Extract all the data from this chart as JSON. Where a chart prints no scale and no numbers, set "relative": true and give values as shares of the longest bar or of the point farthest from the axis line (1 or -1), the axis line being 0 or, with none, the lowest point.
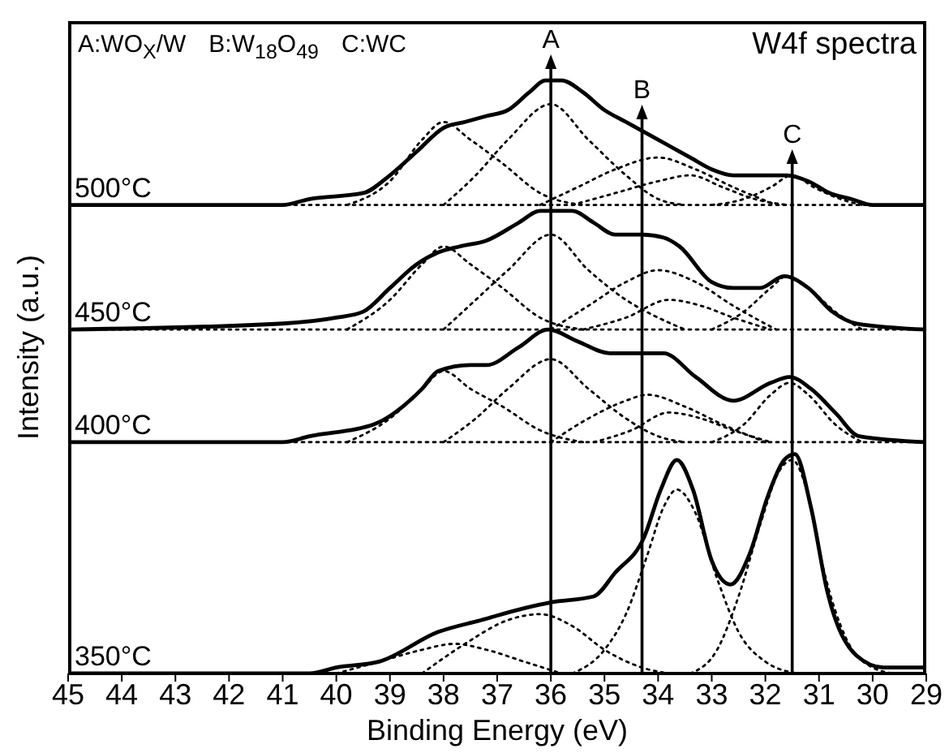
{
  "chart_data": {
    "type": "line",
    "relative": true,
    "xlabel": "Binding Energy (eV)",
    "ylabel": "Intensity (a.u.)",
    "xlim": [
      45,
      29
    ],
    "xticks": [
      45,
      44,
      43,
      42,
      41,
      40,
      39,
      38,
      37,
      36,
      35,
      34,
      33,
      32,
      31,
      30,
      29
    ],
    "annotations": [
      "A:WO$_{X}$/W",
      "B:W$_{18}$O$_{49}$",
      "C:WC",
      "W4f spectra"
    ],
    "ref_lines": [
      {
        "axis": "x",
        "value": 36,
        "label": "A",
        "color": "#000000"
      },
      {
        "axis": "x",
        "value": 34.3,
        "label": "B",
        "color": "#000000"
      },
      {
        "axis": "x",
        "value": 31.5,
        "label": "C",
        "color": "#000000"
      }
    ],
    "series": [
      {
        "name": "500°C",
        "color": "#000000",
        "line_style": "solid",
        "x": [
          45,
          41,
          40.5,
          39.5,
          39,
          38.5,
          38,
          37.6,
          37.2,
          36.8,
          36.4,
          36.1,
          35.8,
          35.4,
          35,
          34.6,
          34.2,
          33.8,
          33.4,
          33,
          32.6,
          32.1,
          31.6,
          31.2,
          30.8,
          30.4,
          30,
          29
        ],
        "values": [
          0.79,
          0.79,
          0.8,
          0.81,
          0.84,
          0.88,
          0.92,
          0.93,
          0.94,
          0.95,
          0.98,
          1.0,
          1.0,
          0.98,
          0.95,
          0.93,
          0.91,
          0.89,
          0.87,
          0.85,
          0.84,
          0.84,
          0.84,
          0.83,
          0.81,
          0.8,
          0.79,
          0.79
        ]
      },
      {
        "name": "450°C",
        "color": "#000000",
        "line_style": "solid",
        "x": [
          45,
          41,
          40,
          39.5,
          39,
          38.5,
          38.1,
          37.7,
          37.2,
          36.6,
          36.2,
          36,
          35.6,
          35.2,
          34.8,
          34.3,
          33.9,
          33.6,
          33,
          32.6,
          32.1,
          31.65,
          31.2,
          30.75,
          30.3,
          29
        ],
        "values": [
          0.58,
          0.59,
          0.6,
          0.61,
          0.65,
          0.69,
          0.71,
          0.72,
          0.73,
          0.76,
          0.78,
          0.78,
          0.78,
          0.76,
          0.74,
          0.74,
          0.735,
          0.72,
          0.66,
          0.65,
          0.65,
          0.67,
          0.65,
          0.61,
          0.59,
          0.58
        ]
      },
      {
        "name": "400°C",
        "color": "#000000",
        "line_style": "solid",
        "x": [
          45,
          41,
          40.5,
          39.3,
          38.4,
          38.1,
          37.5,
          37.2,
          36.6,
          36.05,
          35.5,
          34.9,
          34.26,
          33.9,
          33.3,
          32.6,
          31.9,
          31.55,
          31.15,
          30.7,
          30.25,
          29
        ],
        "values": [
          0.39,
          0.39,
          0.4,
          0.42,
          0.48,
          0.51,
          0.52,
          0.52,
          0.55,
          0.58,
          0.56,
          0.54,
          0.54,
          0.54,
          0.5,
          0.46,
          0.49,
          0.5,
          0.48,
          0.44,
          0.4,
          0.39
        ]
      },
      {
        "name": "350°C",
        "color": "#000000",
        "line_style": "solid",
        "x": [
          45,
          40.5,
          40,
          39.2,
          38.1,
          37.3,
          36.5,
          36,
          35.2,
          34.8,
          34.26,
          33.95,
          33.65,
          33.35,
          33,
          32.65,
          32.3,
          31.95,
          31.65,
          31.45,
          31.15,
          30.85,
          30.3,
          29.8,
          29
        ],
        "values": [
          0,
          0,
          0.01,
          0.02,
          0.07,
          0.09,
          0.11,
          0.12,
          0.13,
          0.17,
          0.23,
          0.31,
          0.36,
          0.31,
          0.19,
          0.15,
          0.2,
          0.3,
          0.36,
          0.37,
          0.28,
          0.14,
          0.03,
          0.01,
          0.01
        ]
      },
      {
        "color": "#000000",
        "line_style": "dotted",
        "x": [
          39.8,
          39,
          38.4,
          38,
          37.5,
          36.9,
          36.2,
          35.4
        ],
        "values": [
          0.79,
          0.83,
          0.9,
          0.93,
          0.9,
          0.86,
          0.81,
          0.79
        ]
      },
      {
        "color": "#000000",
        "line_style": "dotted",
        "x": [
          38,
          37.4,
          36.8,
          36,
          35.3,
          34.6,
          34,
          33.5
        ],
        "values": [
          0.79,
          0.84,
          0.9,
          0.96,
          0.9,
          0.84,
          0.8,
          0.79
        ]
      },
      {
        "color": "#000000",
        "line_style": "dotted",
        "x": [
          36.2,
          35.5,
          34.8,
          34,
          33.3,
          32.6,
          31.8
        ],
        "values": [
          0.79,
          0.82,
          0.85,
          0.87,
          0.85,
          0.82,
          0.79
        ]
      },
      {
        "color": "#000000",
        "line_style": "dotted",
        "x": [
          35.6,
          34.8,
          34,
          33.4,
          32.8,
          32.2,
          31.6
        ],
        "values": [
          0.79,
          0.81,
          0.83,
          0.84,
          0.82,
          0.8,
          0.79
        ]
      },
      {
        "color": "#000000",
        "line_style": "dotted",
        "x": [
          33,
          32.4,
          31.9,
          31.5,
          31.1,
          30.6,
          30.2
        ],
        "values": [
          0.79,
          0.8,
          0.82,
          0.84,
          0.82,
          0.8,
          0.79
        ]
      },
      {
        "color": "#000000",
        "line_style": "dotted",
        "x": [
          45,
          29
        ],
        "values": [
          0.79,
          0.79
        ]
      },
      {
        "color": "#000000",
        "line_style": "dotted",
        "x": [
          39.8,
          39,
          38.4,
          38,
          37.5,
          36.9,
          36.2,
          35.4
        ],
        "values": [
          0.58,
          0.63,
          0.69,
          0.72,
          0.69,
          0.65,
          0.6,
          0.58
        ]
      },
      {
        "color": "#000000",
        "line_style": "dotted",
        "x": [
          38,
          37.4,
          36.8,
          36,
          35.3,
          34.6,
          34,
          33.5
        ],
        "values": [
          0.58,
          0.63,
          0.68,
          0.74,
          0.68,
          0.63,
          0.6,
          0.58
        ]
      },
      {
        "color": "#000000",
        "line_style": "dotted",
        "x": [
          36,
          35.3,
          34.6,
          34,
          33.3,
          32.6,
          31.8
        ],
        "values": [
          0.58,
          0.62,
          0.66,
          0.68,
          0.66,
          0.62,
          0.58
        ]
      },
      {
        "color": "#000000",
        "line_style": "dotted",
        "x": [
          35.4,
          34.6,
          33.8,
          33.2,
          32.6,
          31.9
        ],
        "values": [
          0.58,
          0.6,
          0.63,
          0.62,
          0.6,
          0.58
        ]
      },
      {
        "color": "#000000",
        "line_style": "dotted",
        "x": [
          33,
          32.4,
          31.9,
          31.6,
          31.2,
          30.7,
          30.2
        ],
        "values": [
          0.58,
          0.61,
          0.65,
          0.67,
          0.65,
          0.61,
          0.58
        ]
      },
      {
        "color": "#000000",
        "line_style": "dotted",
        "x": [
          45,
          29
        ],
        "values": [
          0.58,
          0.58
        ]
      },
      {
        "color": "#000000",
        "line_style": "dotted",
        "x": [
          39.8,
          39,
          38.4,
          38,
          37.5,
          36.9,
          36.2,
          35.4
        ],
        "values": [
          0.39,
          0.43,
          0.48,
          0.51,
          0.48,
          0.45,
          0.41,
          0.39
        ]
      },
      {
        "color": "#000000",
        "line_style": "dotted",
        "x": [
          38,
          37.4,
          36.8,
          36,
          35.3,
          34.6,
          34,
          33.5
        ],
        "values": [
          0.39,
          0.43,
          0.48,
          0.53,
          0.48,
          0.43,
          0.4,
          0.39
        ]
      },
      {
        "color": "#000000",
        "line_style": "dotted",
        "x": [
          36,
          35.3,
          34.6,
          34.2,
          33.5,
          32.8,
          32
        ],
        "values": [
          0.39,
          0.43,
          0.46,
          0.47,
          0.45,
          0.42,
          0.39
        ]
      },
      {
        "color": "#000000",
        "line_style": "dotted",
        "x": [
          35.2,
          34.5,
          33.8,
          33.2,
          32.6,
          31.9
        ],
        "values": [
          0.39,
          0.41,
          0.44,
          0.43,
          0.41,
          0.39
        ]
      },
      {
        "color": "#000000",
        "line_style": "dotted",
        "x": [
          33,
          32.4,
          31.9,
          31.55,
          31.2,
          30.7,
          30.2
        ],
        "values": [
          0.39,
          0.42,
          0.47,
          0.49,
          0.47,
          0.42,
          0.39
        ]
      },
      {
        "color": "#000000",
        "line_style": "dotted",
        "x": [
          45,
          29
        ],
        "values": [
          0.39,
          0.39
        ]
      },
      {
        "color": "#000000",
        "line_style": "dotted",
        "x": [
          40,
          39.2,
          38.4,
          37.8,
          37.2,
          36.5,
          35.8
        ],
        "values": [
          0,
          0.02,
          0.04,
          0.05,
          0.04,
          0.02,
          0
        ]
      },
      {
        "color": "#000000",
        "line_style": "dotted",
        "x": [
          38.4,
          37.6,
          36.8,
          36.2,
          35.6,
          35,
          34.3,
          33.8
        ],
        "values": [
          0,
          0.05,
          0.09,
          0.1,
          0.08,
          0.04,
          0.01,
          0
        ]
      },
      {
        "color": "#000000",
        "line_style": "dotted",
        "x": [
          35.6,
          35,
          34.6,
          34.2,
          33.9,
          33.65,
          33.3,
          32.9,
          32.5,
          32,
          31.4
        ],
        "values": [
          0,
          0.04,
          0.1,
          0.2,
          0.28,
          0.31,
          0.27,
          0.16,
          0.07,
          0.02,
          0
        ]
      },
      {
        "color": "#000000",
        "line_style": "dotted",
        "x": [
          33.4,
          32.9,
          32.5,
          32.1,
          31.75,
          31.5,
          31.2,
          30.9,
          30.5,
          30,
          29.6
        ],
        "values": [
          0,
          0.04,
          0.13,
          0.25,
          0.34,
          0.36,
          0.3,
          0.17,
          0.06,
          0.01,
          0
        ]
      }
    ]
  }
}
